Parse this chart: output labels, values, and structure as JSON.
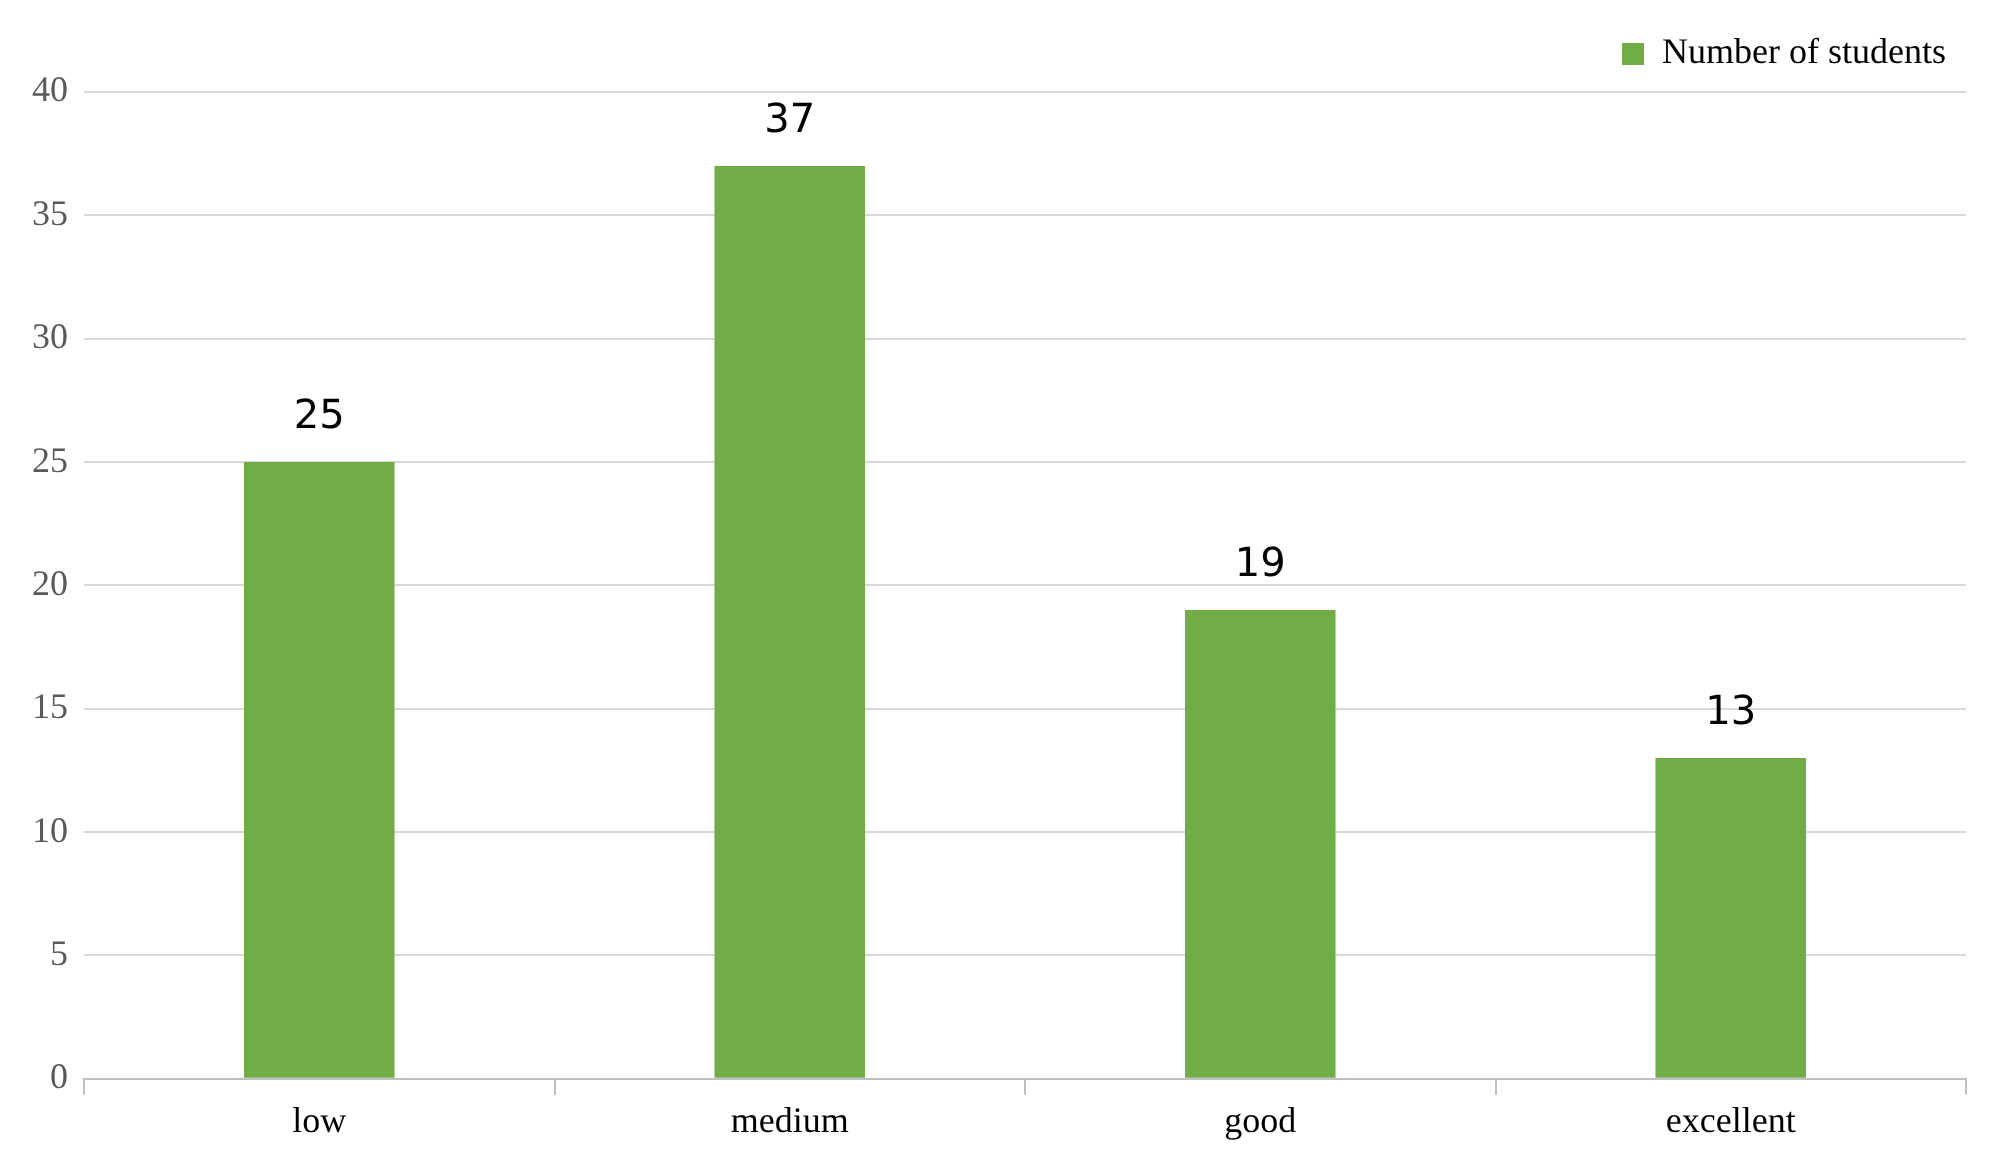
{
  "chart_data": {
    "type": "bar",
    "categories": [
      "low",
      "medium",
      "good",
      "excellent"
    ],
    "series": [
      {
        "name": "Number of students",
        "color": "#70ad47",
        "values": [
          25,
          37,
          19,
          13
        ]
      }
    ],
    "ylim": [
      0,
      40
    ],
    "yticks": [
      0,
      5,
      10,
      15,
      20,
      25,
      30,
      35,
      40
    ],
    "grid": "y",
    "legend": "top right",
    "data_labels": true
  }
}
